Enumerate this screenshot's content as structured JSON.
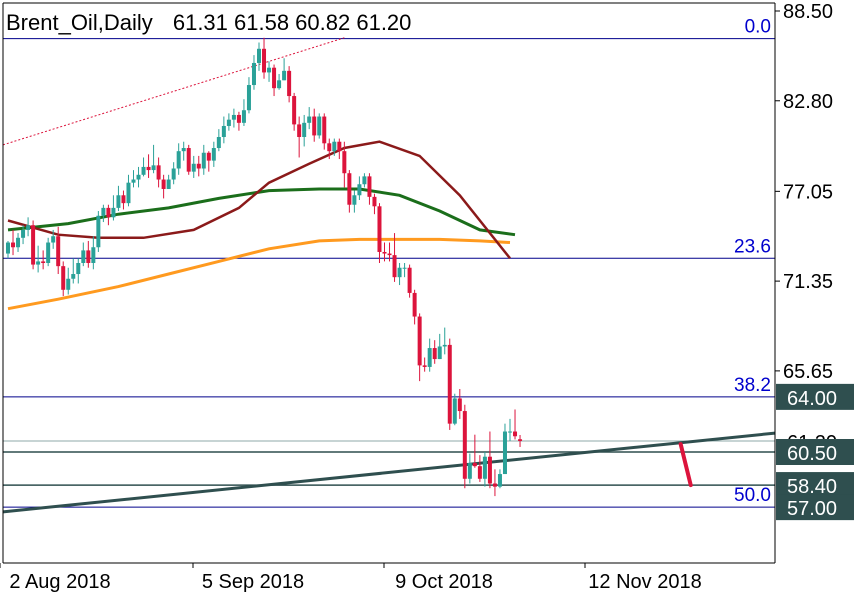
{
  "header": {
    "symbol": "Brent_Oil,Daily",
    "ohlc": "61.31 61.58 60.82 61.20"
  },
  "colors": {
    "bull": "#2aa198",
    "bear": "#dc143c",
    "ma_short": "#8b1a1a",
    "ma_mid": "#1b6e1b",
    "ma_long": "#ff9a1f",
    "fib": "#00008b",
    "trend": "#2f4f4f",
    "axis_text": "#000000",
    "fib_text": "#0000cd"
  },
  "chart_data": {
    "type": "candlestick",
    "title": "Brent_Oil,Daily",
    "ylim": [
      56.2,
      89.2
    ],
    "x_tick_labels": [
      "2 Aug 2018",
      "5 Sep 2018",
      "9 Oct 2018",
      "12 Nov 2018"
    ],
    "y_tick_labels": [
      "88.50",
      "82.80",
      "77.05",
      "71.35",
      "65.65"
    ],
    "price_labels": [
      {
        "text": "64.00",
        "value": 64.0,
        "style": "dark"
      },
      {
        "text": "61.20",
        "value": 61.2,
        "style": "current"
      },
      {
        "text": "60.50",
        "value": 60.5,
        "style": "dark"
      },
      {
        "text": "58.40",
        "value": 58.4,
        "style": "dark"
      },
      {
        "text": "57.00",
        "value": 57.0,
        "style": "dark"
      }
    ],
    "fib_levels": [
      {
        "label": "0.0",
        "value": 86.75
      },
      {
        "label": "23.6",
        "value": 72.8
      },
      {
        "label": "38.2",
        "value": 64.0
      },
      {
        "label": "50.0",
        "value": 57.0
      }
    ],
    "horizontal_lines": [
      61.2,
      60.5,
      58.4
    ],
    "trendline": {
      "from": [
        0,
        56.7
      ],
      "to": [
        139,
        61.7
      ]
    },
    "channel_line": {
      "from": [
        0,
        80.0
      ],
      "to": [
        67,
        86.8
      ]
    },
    "forecast_arrow": {
      "from": [
        134,
        61.0
      ],
      "to": [
        136,
        58.4
      ]
    },
    "candles": [
      [
        73.1,
        73.8,
        73.9,
        72.8
      ],
      [
        73.8,
        73.5,
        74.6,
        73.0
      ],
      [
        73.5,
        74.1,
        74.4,
        73.2
      ],
      [
        74.1,
        74.6,
        74.9,
        73.7
      ],
      [
        74.6,
        74.9,
        75.4,
        74.2
      ],
      [
        74.9,
        72.4,
        75.2,
        72.1
      ],
      [
        72.4,
        72.6,
        73.6,
        71.9
      ],
      [
        72.6,
        72.5,
        73.3,
        72.1
      ],
      [
        72.5,
        73.8,
        74.1,
        72.3
      ],
      [
        73.8,
        74.2,
        74.6,
        73.4
      ],
      [
        74.2,
        72.3,
        74.8,
        71.8
      ],
      [
        72.3,
        70.8,
        72.6,
        70.4
      ],
      [
        70.8,
        71.5,
        72.2,
        70.5
      ],
      [
        71.5,
        71.8,
        72.8,
        71.2
      ],
      [
        71.8,
        72.5,
        72.8,
        71.2
      ],
      [
        72.5,
        73.3,
        73.8,
        72.3
      ],
      [
        73.3,
        72.5,
        73.9,
        72.2
      ],
      [
        72.5,
        73.5,
        74.2,
        72.1
      ],
      [
        73.5,
        75.5,
        75.8,
        73.2
      ],
      [
        75.5,
        76.0,
        76.2,
        75.1
      ],
      [
        76.0,
        75.4,
        76.2,
        74.9
      ],
      [
        75.4,
        76.0,
        76.8,
        75.2
      ],
      [
        76.0,
        76.8,
        77.4,
        75.8
      ],
      [
        76.8,
        76.3,
        77.1,
        75.9
      ],
      [
        76.3,
        77.6,
        78.1,
        76.1
      ],
      [
        77.6,
        77.8,
        78.4,
        77.3
      ],
      [
        77.8,
        78.1,
        78.6,
        77.3
      ],
      [
        78.1,
        78.6,
        79.2,
        78.0
      ],
      [
        78.6,
        78.4,
        79.4,
        77.9
      ],
      [
        78.4,
        78.7,
        80.0,
        78.2
      ],
      [
        78.7,
        77.8,
        79.2,
        77.3
      ],
      [
        77.8,
        77.2,
        78.1,
        76.6
      ],
      [
        77.2,
        77.8,
        78.1,
        77.2
      ],
      [
        77.8,
        78.5,
        78.9,
        77.5
      ],
      [
        78.5,
        79.6,
        80.1,
        78.1
      ],
      [
        79.6,
        79.8,
        80.2,
        79.0
      ],
      [
        79.8,
        78.3,
        80.0,
        78.1
      ],
      [
        78.3,
        78.8,
        79.3,
        77.9
      ],
      [
        78.8,
        78.5,
        79.3,
        78.0
      ],
      [
        78.5,
        79.5,
        80.0,
        78.1
      ],
      [
        79.5,
        79.0,
        79.6,
        78.3
      ],
      [
        79.0,
        79.8,
        80.2,
        78.6
      ],
      [
        79.8,
        80.5,
        81.0,
        79.6
      ],
      [
        80.5,
        81.2,
        81.8,
        80.1
      ],
      [
        81.2,
        81.6,
        82.0,
        80.9
      ],
      [
        81.6,
        81.9,
        82.3,
        81.1
      ],
      [
        81.9,
        81.4,
        82.1,
        80.9
      ],
      [
        81.4,
        82.2,
        82.9,
        81.2
      ],
      [
        82.2,
        83.8,
        84.3,
        82.0
      ],
      [
        83.8,
        85.2,
        85.7,
        83.5
      ],
      [
        85.2,
        86.1,
        86.5,
        84.7
      ],
      [
        86.1,
        84.6,
        86.8,
        84.2
      ],
      [
        84.6,
        84.9,
        85.3,
        84.0
      ],
      [
        84.9,
        83.6,
        85.1,
        83.1
      ],
      [
        83.6,
        84.1,
        84.5,
        83.5
      ],
      [
        84.1,
        84.7,
        85.5,
        84.1
      ],
      [
        84.7,
        83.1,
        85.0,
        82.7
      ],
      [
        83.1,
        81.3,
        83.3,
        80.9
      ],
      [
        81.3,
        80.5,
        81.8,
        79.2
      ],
      [
        80.5,
        81.4,
        81.9,
        79.9
      ],
      [
        81.4,
        81.8,
        82.4,
        81.0
      ],
      [
        81.8,
        80.6,
        82.3,
        80.2
      ],
      [
        80.6,
        81.8,
        82.0,
        80.4
      ],
      [
        81.8,
        80.1,
        82.0,
        79.7
      ],
      [
        80.1,
        79.6,
        80.4,
        79.1
      ],
      [
        79.6,
        80.2,
        80.4,
        79.3
      ],
      [
        80.2,
        79.6,
        80.4,
        79.1
      ],
      [
        79.6,
        78.2,
        80.2,
        77.3
      ],
      [
        78.2,
        76.2,
        78.4,
        75.7
      ],
      [
        76.2,
        76.8,
        77.1,
        75.7
      ],
      [
        76.8,
        77.5,
        78.0,
        76.5
      ],
      [
        77.5,
        78.0,
        78.2,
        77.3
      ],
      [
        78.0,
        76.7,
        78.2,
        76.2
      ],
      [
        76.7,
        76.1,
        76.9,
        75.6
      ],
      [
        76.1,
        73.2,
        76.3,
        72.5
      ],
      [
        73.2,
        73.1,
        73.8,
        72.6
      ],
      [
        73.1,
        73.0,
        73.8,
        72.6
      ],
      [
        73.0,
        71.6,
        74.4,
        71.3
      ],
      [
        71.6,
        72.2,
        72.5,
        71.1
      ],
      [
        72.2,
        72.2,
        72.5,
        71.6
      ],
      [
        72.2,
        70.6,
        72.4,
        70.3
      ],
      [
        70.6,
        69.1,
        70.8,
        68.6
      ],
      [
        69.1,
        66.0,
        69.3,
        65.0
      ],
      [
        66.0,
        65.9,
        66.5,
        65.6
      ],
      [
        65.9,
        67.1,
        67.7,
        65.6
      ],
      [
        67.1,
        66.4,
        67.6,
        66.1
      ],
      [
        66.4,
        67.2,
        68.0,
        66.4
      ],
      [
        67.2,
        67.3,
        68.4,
        66.7
      ],
      [
        67.3,
        62.3,
        67.7,
        61.9
      ],
      [
        62.3,
        63.9,
        64.2,
        62.2
      ],
      [
        63.9,
        63.1,
        64.5,
        62.6
      ],
      [
        63.1,
        58.8,
        63.5,
        58.2
      ],
      [
        58.8,
        59.8,
        60.4,
        58.5
      ],
      [
        59.8,
        59.6,
        61.6,
        59.5
      ],
      [
        59.6,
        58.8,
        60.3,
        58.6
      ],
      [
        58.8,
        60.2,
        60.5,
        58.3
      ],
      [
        60.2,
        58.5,
        61.8,
        58.2
      ],
      [
        58.5,
        58.3,
        59.4,
        57.7
      ],
      [
        58.3,
        59.1,
        59.4,
        58.2
      ],
      [
        59.1,
        61.8,
        62.3,
        60.3
      ],
      [
        61.8,
        61.8,
        62.6,
        61.2
      ],
      [
        61.8,
        61.5,
        63.2,
        61.3
      ],
      [
        61.31,
        61.2,
        61.58,
        60.82
      ]
    ],
    "ma_short": [
      [
        0,
        75.2
      ],
      [
        10,
        74.3
      ],
      [
        18,
        74.1
      ],
      [
        27,
        74.1
      ],
      [
        37,
        74.6
      ],
      [
        46,
        76.0
      ],
      [
        52,
        77.6
      ],
      [
        60,
        78.8
      ],
      [
        67,
        79.8
      ],
      [
        74,
        80.2
      ],
      [
        82,
        79.3
      ],
      [
        90,
        76.8
      ],
      [
        100,
        72.8
      ]
    ],
    "ma_mid": [
      [
        0,
        74.6
      ],
      [
        12,
        75.0
      ],
      [
        22,
        75.6
      ],
      [
        32,
        76.0
      ],
      [
        42,
        76.6
      ],
      [
        52,
        77.1
      ],
      [
        62,
        77.2
      ],
      [
        70,
        77.2
      ],
      [
        78,
        76.8
      ],
      [
        86,
        75.8
      ],
      [
        94,
        74.6
      ],
      [
        101,
        74.3
      ]
    ],
    "ma_long": [
      [
        0,
        69.6
      ],
      [
        10,
        70.2
      ],
      [
        22,
        71.0
      ],
      [
        32,
        71.8
      ],
      [
        42,
        72.6
      ],
      [
        52,
        73.4
      ],
      [
        62,
        73.9
      ],
      [
        70,
        74.0
      ],
      [
        78,
        74.0
      ],
      [
        86,
        74.0
      ],
      [
        94,
        73.9
      ],
      [
        100,
        73.8
      ]
    ]
  }
}
